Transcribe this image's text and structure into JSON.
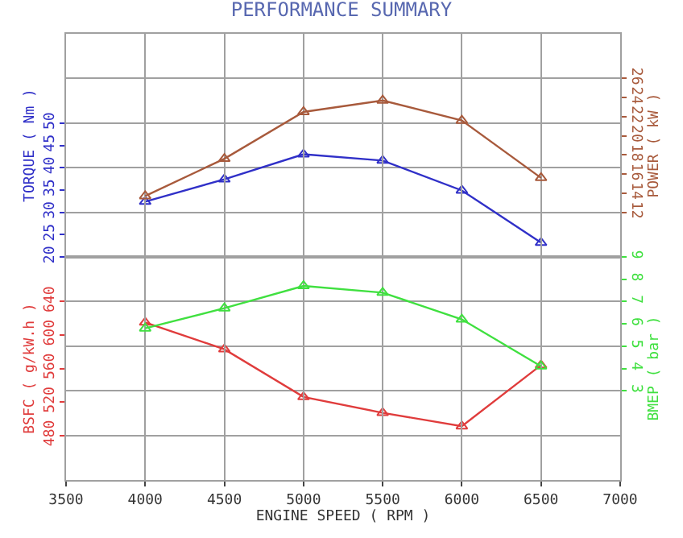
{
  "chart_data": [
    {
      "type": "line",
      "title": "PERFORMANCE SUMMARY",
      "ylabel": "TORQUE ( Nm )",
      "y2label": "POWER ( kW )",
      "x": [
        4000,
        4500,
        5000,
        5500,
        6000,
        6500
      ],
      "series": [
        {
          "color": "#3030c8",
          "values": [
            32.4,
            37.4,
            43.0,
            41.6,
            34.9,
            23.2
          ]
        },
        {
          "axis": "y2",
          "color": "#a85a3c",
          "values": [
            13.7,
            17.6,
            22.5,
            23.7,
            21.6,
            15.6
          ]
        }
      ],
      "xlim": [
        3500,
        7000
      ],
      "xticks": [
        3500,
        4000,
        4500,
        5000,
        5500,
        6000,
        6500,
        7000
      ],
      "ylim": [
        20,
        70
      ],
      "yticks": [
        20,
        25,
        30,
        35,
        40,
        45,
        50
      ],
      "y2lim": [
        7.33,
        30.67
      ],
      "y2ticks": [
        12,
        14,
        16,
        18,
        20,
        22,
        24,
        26
      ],
      "tick_labels": "y",
      "grid": true,
      "marker": "triangle",
      "line_style": "solid"
    },
    {
      "type": "line",
      "xlabel": "ENGINE SPEED ( RPM )",
      "ylabel": "BSFC ( g/kW.h )",
      "y2label": "BMEP ( bar )",
      "x": [
        4000,
        4500,
        5000,
        5500,
        6000,
        6500
      ],
      "series": [
        {
          "color": "#e03c3c",
          "values": [
            615,
            583,
            526,
            507,
            491,
            564
          ]
        },
        {
          "axis": "y2",
          "color": "#40e040",
          "values": [
            5.8,
            6.7,
            7.7,
            7.4,
            6.2,
            4.1
          ]
        }
      ],
      "xlim": [
        3500,
        7000
      ],
      "xticks": [
        3500,
        4000,
        4500,
        5000,
        5500,
        6000,
        6500,
        7000
      ],
      "ylim": [
        426.67,
        693.33
      ],
      "yticks": [
        480,
        520,
        560,
        600,
        640
      ],
      "y2lim": [
        -1,
        9
      ],
      "y2ticks": [
        3,
        4,
        5,
        6,
        7,
        8,
        9
      ],
      "grid": true,
      "marker": "triangle",
      "line_style": "solid"
    }
  ]
}
